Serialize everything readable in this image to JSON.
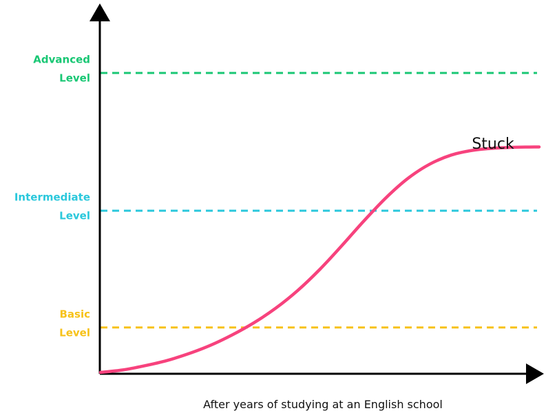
{
  "chart_data": {
    "type": "line",
    "title": "",
    "xlabel": "After years of studying at an English school",
    "ylabel": "",
    "grid": false,
    "xlim": [
      0,
      100
    ],
    "ylim": [
      0,
      100
    ],
    "levels": [
      {
        "id": "advanced",
        "lines": [
          "Advanced",
          "Level"
        ],
        "value": 100,
        "color": "#19c774"
      },
      {
        "id": "intermediate",
        "lines": [
          "Intermediate",
          "Level"
        ],
        "value": 54,
        "color": "#2bc8dc"
      },
      {
        "id": "basic",
        "lines": [
          "Basic",
          "Level"
        ],
        "value": 15,
        "color": "#f7c21a"
      }
    ],
    "series": [
      {
        "color": "#f7427d",
        "x": [
          0,
          5,
          10,
          15,
          20,
          25,
          30,
          35,
          40,
          45,
          50,
          55,
          60,
          65,
          70,
          75,
          80,
          85,
          90,
          95,
          100
        ],
        "y": [
          0,
          0.8,
          2.2,
          3.9,
          6.2,
          9,
          12.5,
          16.6,
          21.5,
          27.4,
          34.4,
          42.3,
          50.5,
          58.2,
          64.7,
          69.5,
          72.6,
          74.2,
          74.9,
          75.2,
          75.3
        ]
      }
    ],
    "annotations": [
      {
        "text": "Stuck"
      }
    ]
  }
}
